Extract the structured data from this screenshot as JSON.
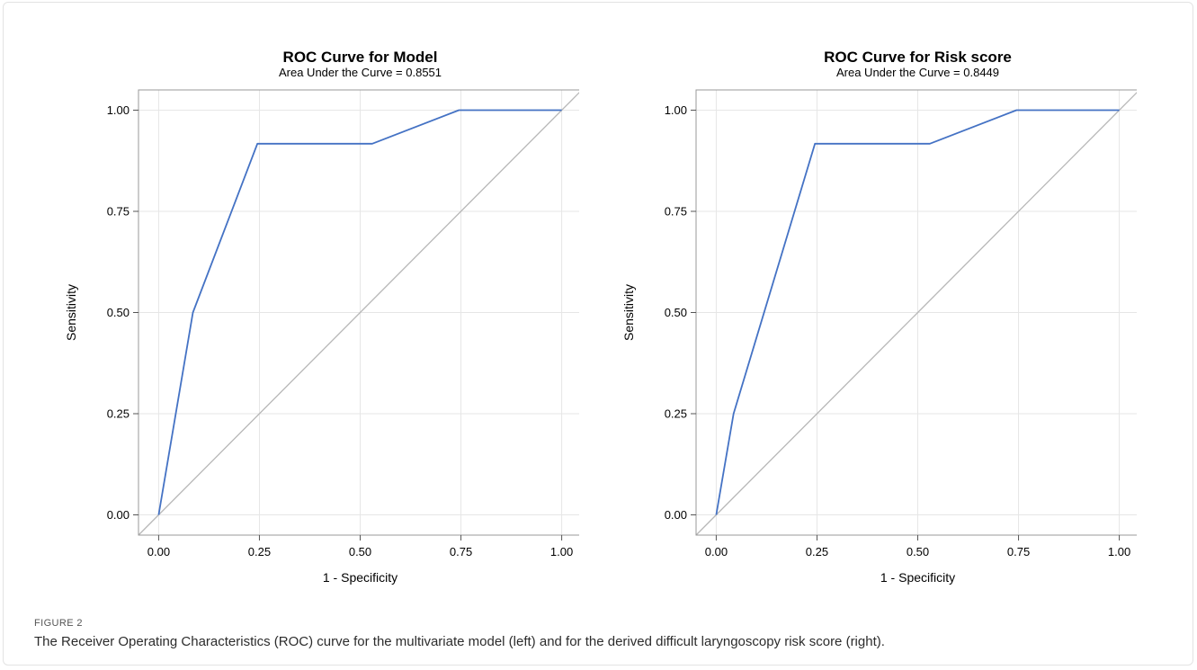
{
  "figure": {
    "label": "FIGURE 2",
    "caption": "The Receiver Operating Characteristics (ROC) curve for the multivariate model (left) and for the derived difficult laryngoscopy risk score (right)."
  },
  "colors": {
    "roc_line": "#4472c4",
    "diagonal": "#b7b7b7",
    "grid": "#e6e6e6",
    "frame": "#999999"
  },
  "chart_data": [
    {
      "type": "line",
      "title": "ROC Curve for Model",
      "subtitle": "Area Under the Curve = 0.8551",
      "xlabel": "1 - Specificity",
      "ylabel": "Sensitivity",
      "xlim": [
        -0.05,
        1.05
      ],
      "ylim": [
        -0.05,
        1.05
      ],
      "xticks": [
        "0.00",
        "0.25",
        "0.50",
        "0.75",
        "1.00"
      ],
      "yticks": [
        "0.00",
        "0.25",
        "0.50",
        "0.75",
        "1.00"
      ],
      "grid": true,
      "series": [
        {
          "x": [
            0.0,
            0.085,
            0.245,
            0.53,
            0.745,
            1.0
          ],
          "y": [
            0.0,
            0.5,
            0.917,
            0.917,
            1.0,
            1.0
          ]
        }
      ],
      "reference_line": {
        "x": [
          0,
          1
        ],
        "y": [
          0,
          1
        ]
      }
    },
    {
      "type": "line",
      "title": "ROC Curve for Risk score",
      "subtitle": "Area Under the Curve = 0.8449",
      "xlabel": "1 - Specificity",
      "ylabel": "Sensitivity",
      "xlim": [
        -0.05,
        1.05
      ],
      "ylim": [
        -0.05,
        1.05
      ],
      "xticks": [
        "0.00",
        "0.25",
        "0.50",
        "0.75",
        "1.00"
      ],
      "yticks": [
        "0.00",
        "0.25",
        "0.50",
        "0.75",
        "1.00"
      ],
      "grid": true,
      "series": [
        {
          "x": [
            0.0,
            0.043,
            0.245,
            0.53,
            0.745,
            1.0
          ],
          "y": [
            0.0,
            0.25,
            0.917,
            0.917,
            1.0,
            1.0
          ]
        }
      ],
      "reference_line": {
        "x": [
          0,
          1
        ],
        "y": [
          0,
          1
        ]
      }
    }
  ]
}
